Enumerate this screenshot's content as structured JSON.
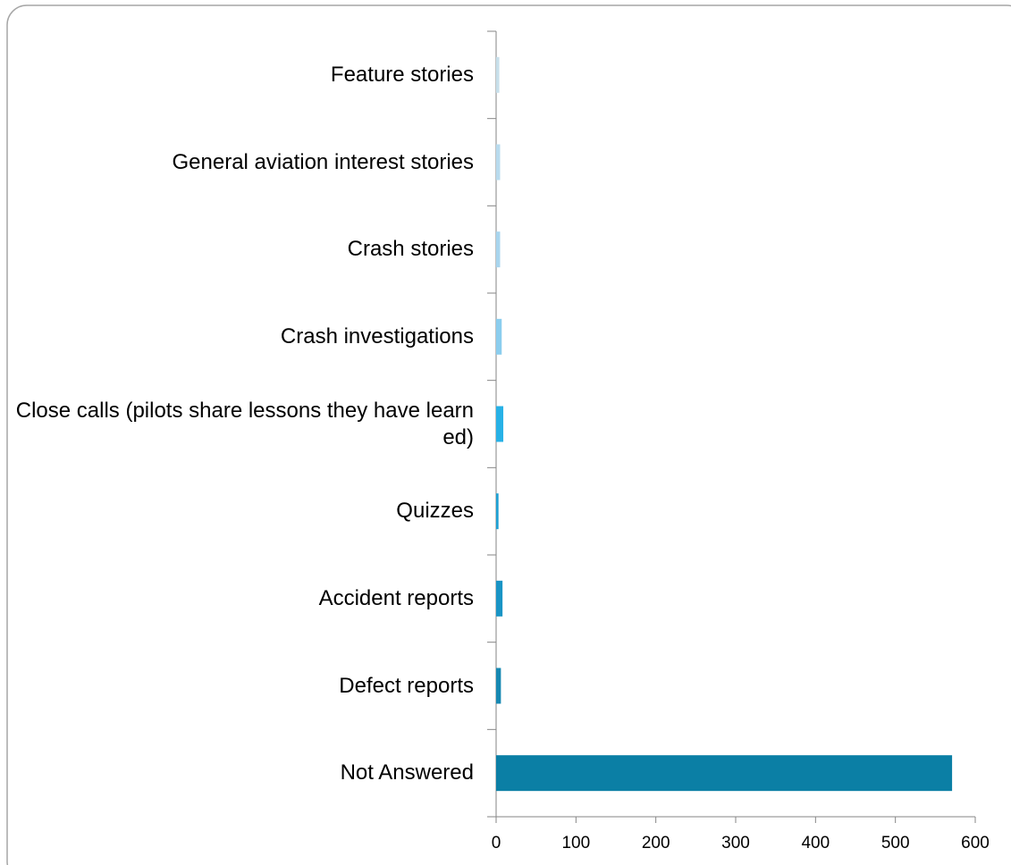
{
  "chart_data": {
    "type": "barh",
    "categories": [
      "Feature stories",
      "General aviation interest stories",
      "Crash stories",
      "Crash investigations",
      "Close calls (pilots share lessons they have learned)",
      "Quizzes",
      "Accident reports",
      "Defect reports",
      "Not Answered"
    ],
    "values": [
      4,
      5,
      5,
      7,
      9,
      3,
      8,
      6,
      571
    ],
    "colors": [
      "#c7dfea",
      "#b8dbee",
      "#a8d5ee",
      "#8bcdee",
      "#27b1e6",
      "#1ea0d3",
      "#1994c5",
      "#1688b2",
      "#0b7fa5"
    ],
    "xlim": [
      0,
      600
    ],
    "xticks": [
      0,
      100,
      200,
      300,
      400,
      500,
      600
    ]
  }
}
